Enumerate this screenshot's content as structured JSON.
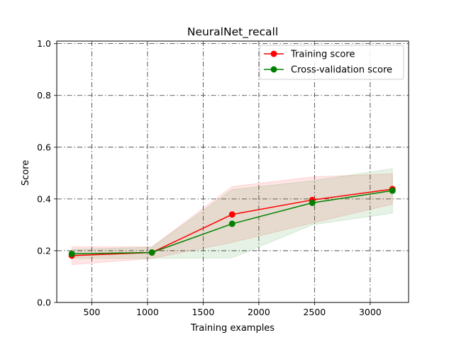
{
  "chart_data": {
    "type": "line",
    "title": "NeuralNet_recall",
    "xlabel": "Training examples",
    "ylabel": "Score",
    "xlim": [
      185,
      3345
    ],
    "ylim": [
      0.0,
      1.01
    ],
    "xticks": [
      500,
      1000,
      1500,
      2000,
      2500,
      3000
    ],
    "yticks": [
      0.0,
      0.2,
      0.4,
      0.6,
      0.8,
      1.0
    ],
    "xtick_labels": [
      "500",
      "1000",
      "1500",
      "2000",
      "2500",
      "3000"
    ],
    "ytick_labels": [
      "0.0",
      "0.2",
      "0.4",
      "0.6",
      "0.8",
      "1.0"
    ],
    "grid": true,
    "legend_position": "top-right",
    "x": [
      320,
      1040,
      1760,
      2480,
      3200
    ],
    "series": [
      {
        "name": "Training score",
        "color": "#ff0000",
        "values": [
          0.181,
          0.193,
          0.34,
          0.396,
          0.438
        ],
        "band_upper": [
          0.215,
          0.215,
          0.448,
          0.485,
          0.497
        ],
        "band_lower": [
          0.146,
          0.17,
          0.232,
          0.307,
          0.38
        ]
      },
      {
        "name": "Cross-validation score",
        "color": "#008000",
        "values": [
          0.188,
          0.193,
          0.304,
          0.385,
          0.432
        ],
        "band_upper": [
          0.205,
          0.213,
          0.436,
          0.47,
          0.517
        ],
        "band_lower": [
          0.17,
          0.17,
          0.172,
          0.3,
          0.345
        ]
      }
    ]
  }
}
